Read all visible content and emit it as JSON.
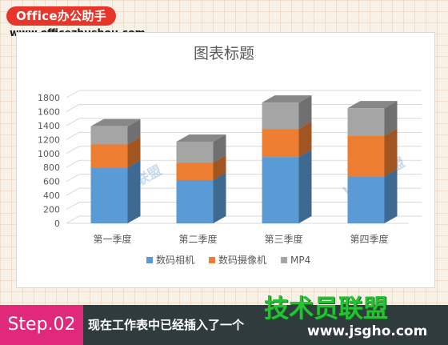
{
  "header": {
    "brand": "Office办公助手",
    "url": "www.officezhushou.com"
  },
  "footer": {
    "step": "Step.02",
    "caption": "现在工作表中已经插入了一个",
    "logo": "技术员联盟",
    "logo_url": "www.jsgho.com"
  },
  "colors": {
    "brand_red": "#e8352a",
    "step_pink": "#e0297a",
    "bar_blue": "#5b9bd5",
    "bar_orange": "#ed7d31",
    "bar_gray": "#a5a5a5",
    "logo_green": "#27c233"
  },
  "chart_data": {
    "type": "bar",
    "stacked": true,
    "style": "3d-column",
    "title": "图表标题",
    "xlabel": "",
    "ylabel": "",
    "categories": [
      "第一季度",
      "第二季度",
      "第三季度",
      "第四季度"
    ],
    "series": [
      {
        "name": "数码相机",
        "values": [
          800,
          620,
          950,
          670
        ],
        "color": "#5b9bd5"
      },
      {
        "name": "数码摄像机",
        "values": [
          330,
          250,
          400,
          580
        ],
        "color": "#ed7d31"
      },
      {
        "name": "MP4",
        "values": [
          260,
          300,
          380,
          400
        ],
        "color": "#a5a5a5"
      }
    ],
    "ylim": [
      0,
      1800
    ],
    "yticks": [
      "0",
      "200",
      "400",
      "600",
      "800",
      "1000",
      "1200",
      "1400",
      "1600",
      "1800"
    ],
    "grid": true,
    "legend": "bottom",
    "watermark": "Word联盟"
  }
}
